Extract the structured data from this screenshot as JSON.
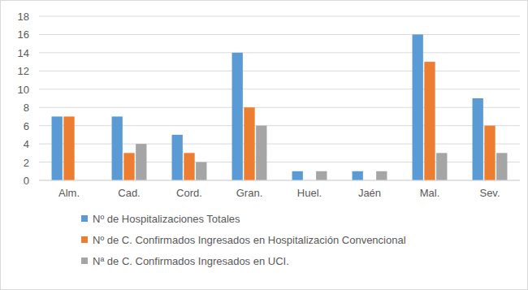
{
  "chart_data": {
    "type": "bar",
    "categories": [
      "Alm.",
      "Cad.",
      "Cord.",
      "Gran.",
      "Huel.",
      "Jaén",
      "Mal.",
      "Sev."
    ],
    "series": [
      {
        "name": "Nº de Hospitalizaciones Totales",
        "color": "#5b9bd5",
        "values": [
          7,
          7,
          5,
          14,
          1,
          1,
          16,
          9
        ]
      },
      {
        "name": "Nº de C. Confirmados Ingresados en Hospitalización Convencional",
        "color": "#ed7d31",
        "values": [
          7,
          3,
          3,
          8,
          0,
          0,
          13,
          6
        ]
      },
      {
        "name": "Nª de C. Confirmados Ingresados en UCI.",
        "color": "#a5a5a5",
        "values": [
          0,
          4,
          2,
          6,
          1,
          1,
          3,
          3
        ]
      }
    ],
    "ylim": [
      0,
      18
    ],
    "yticks": [
      0,
      2,
      4,
      6,
      8,
      10,
      12,
      14,
      16,
      18
    ],
    "grid": true,
    "legend": "bottom"
  }
}
